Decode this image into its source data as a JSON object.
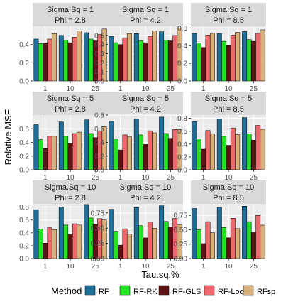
{
  "chart_data": {
    "type": "bar",
    "ylabel": "Relative MSE",
    "xlabel": "Tau.sq.%",
    "categories": [
      "1",
      "10",
      "25"
    ],
    "legend": {
      "title": "Method",
      "position": "bottom",
      "items": [
        {
          "name": "RF",
          "color": "#1f6f99"
        },
        {
          "name": "RF-RK",
          "color": "#22e322"
        },
        {
          "name": "RF-GLS",
          "color": "#5e1414"
        },
        {
          "name": "RF-Loc",
          "color": "#f0686c"
        },
        {
          "name": "RFsp",
          "color": "#d9b07a"
        }
      ]
    },
    "panels": [
      {
        "strip": [
          "Sigma.Sq = 1",
          "Phi = 2.8"
        ],
        "ylim": [
          0,
          0.6
        ],
        "ticks": [
          0.0,
          0.2,
          0.4
        ],
        "values": [
          [
            0.46,
            0.41,
            0.41,
            0.46,
            0.52
          ],
          [
            0.5,
            0.45,
            0.42,
            0.48,
            0.55
          ],
          [
            0.53,
            0.46,
            0.44,
            0.51,
            0.57
          ]
        ]
      },
      {
        "strip": [
          "Sigma.Sq = 1",
          "Phi = 4.2"
        ],
        "ylim": [
          0,
          0.6
        ],
        "ticks": [
          0.0,
          0.1,
          0.2,
          0.3,
          0.4,
          0.5
        ],
        "values": [
          [
            0.49,
            0.42,
            0.4,
            0.47,
            0.52
          ],
          [
            0.52,
            0.44,
            0.42,
            0.49,
            0.55
          ],
          [
            0.54,
            0.45,
            0.44,
            0.5,
            0.58
          ]
        ]
      },
      {
        "strip": [
          "Sigma.Sq = 1",
          "Phi = 8.5"
        ],
        "ylim": [
          0,
          0.62
        ],
        "ticks": [
          0.0,
          0.2,
          0.4,
          0.6
        ],
        "values": [
          [
            0.54,
            0.43,
            0.38,
            0.52,
            0.54
          ],
          [
            0.54,
            0.45,
            0.4,
            0.52,
            0.55
          ],
          [
            0.56,
            0.47,
            0.45,
            0.54,
            0.58
          ]
        ]
      },
      {
        "strip": [
          "Sigma.Sq = 5",
          "Phi = 2.8"
        ],
        "ylim": [
          0,
          0.8
        ],
        "ticks": [
          0.0,
          0.2,
          0.4,
          0.6
        ],
        "values": [
          [
            0.66,
            0.44,
            0.31,
            0.49,
            0.49
          ],
          [
            0.7,
            0.49,
            0.38,
            0.53,
            0.55
          ],
          [
            0.73,
            0.53,
            0.47,
            0.57,
            0.63
          ]
        ]
      },
      {
        "strip": [
          "Sigma.Sq = 5",
          "Phi = 4.2"
        ],
        "ylim": [
          0,
          0.8
        ],
        "ticks": [
          0.0,
          0.2,
          0.4,
          0.6,
          0.8
        ],
        "values": [
          [
            0.71,
            0.45,
            0.29,
            0.51,
            0.48
          ],
          [
            0.74,
            0.51,
            0.37,
            0.57,
            0.54
          ],
          [
            0.77,
            0.53,
            0.46,
            0.59,
            0.59
          ]
        ]
      },
      {
        "strip": [
          "Sigma.Sq = 5",
          "Phi = 8.5"
        ],
        "ylim": [
          0,
          0.85
        ],
        "ticks": [
          0.0,
          0.2,
          0.4,
          0.6,
          0.8
        ],
        "values": [
          [
            0.75,
            0.48,
            0.32,
            0.61,
            0.56
          ],
          [
            0.79,
            0.52,
            0.38,
            0.65,
            0.55
          ],
          [
            0.81,
            0.56,
            0.46,
            0.69,
            0.63
          ]
        ]
      },
      {
        "strip": [
          "Sigma.Sq = 10",
          "Phi = 2.8"
        ],
        "ylim": [
          0,
          0.85
        ],
        "ticks": [
          0.0,
          0.2,
          0.4,
          0.6,
          0.8
        ],
        "values": [
          [
            0.76,
            0.46,
            0.24,
            0.48,
            0.45
          ],
          [
            0.8,
            0.52,
            0.37,
            0.54,
            0.52
          ],
          [
            0.84,
            0.63,
            0.53,
            0.62,
            0.6
          ]
        ]
      },
      {
        "strip": [
          "Sigma.Sq = 10",
          "Phi = 4.2"
        ],
        "ylim": [
          0,
          0.9
        ],
        "ticks": [
          0.0,
          0.25,
          0.5,
          0.75
        ],
        "values": [
          [
            0.81,
            0.45,
            0.22,
            0.49,
            0.4
          ],
          [
            0.84,
            0.54,
            0.34,
            0.6,
            0.5
          ],
          [
            0.87,
            0.61,
            0.52,
            0.66,
            0.56
          ]
        ]
      },
      {
        "strip": [
          "Sigma.Sq = 10",
          "Phi = 8.5"
        ],
        "ylim": [
          0,
          0.95
        ],
        "ticks": [
          0.0,
          0.25,
          0.5,
          0.75
        ],
        "values": [
          [
            0.87,
            0.5,
            0.26,
            0.64,
            0.45
          ],
          [
            0.89,
            0.54,
            0.36,
            0.7,
            0.52
          ],
          [
            0.91,
            0.64,
            0.46,
            0.75,
            0.58
          ]
        ]
      }
    ]
  }
}
